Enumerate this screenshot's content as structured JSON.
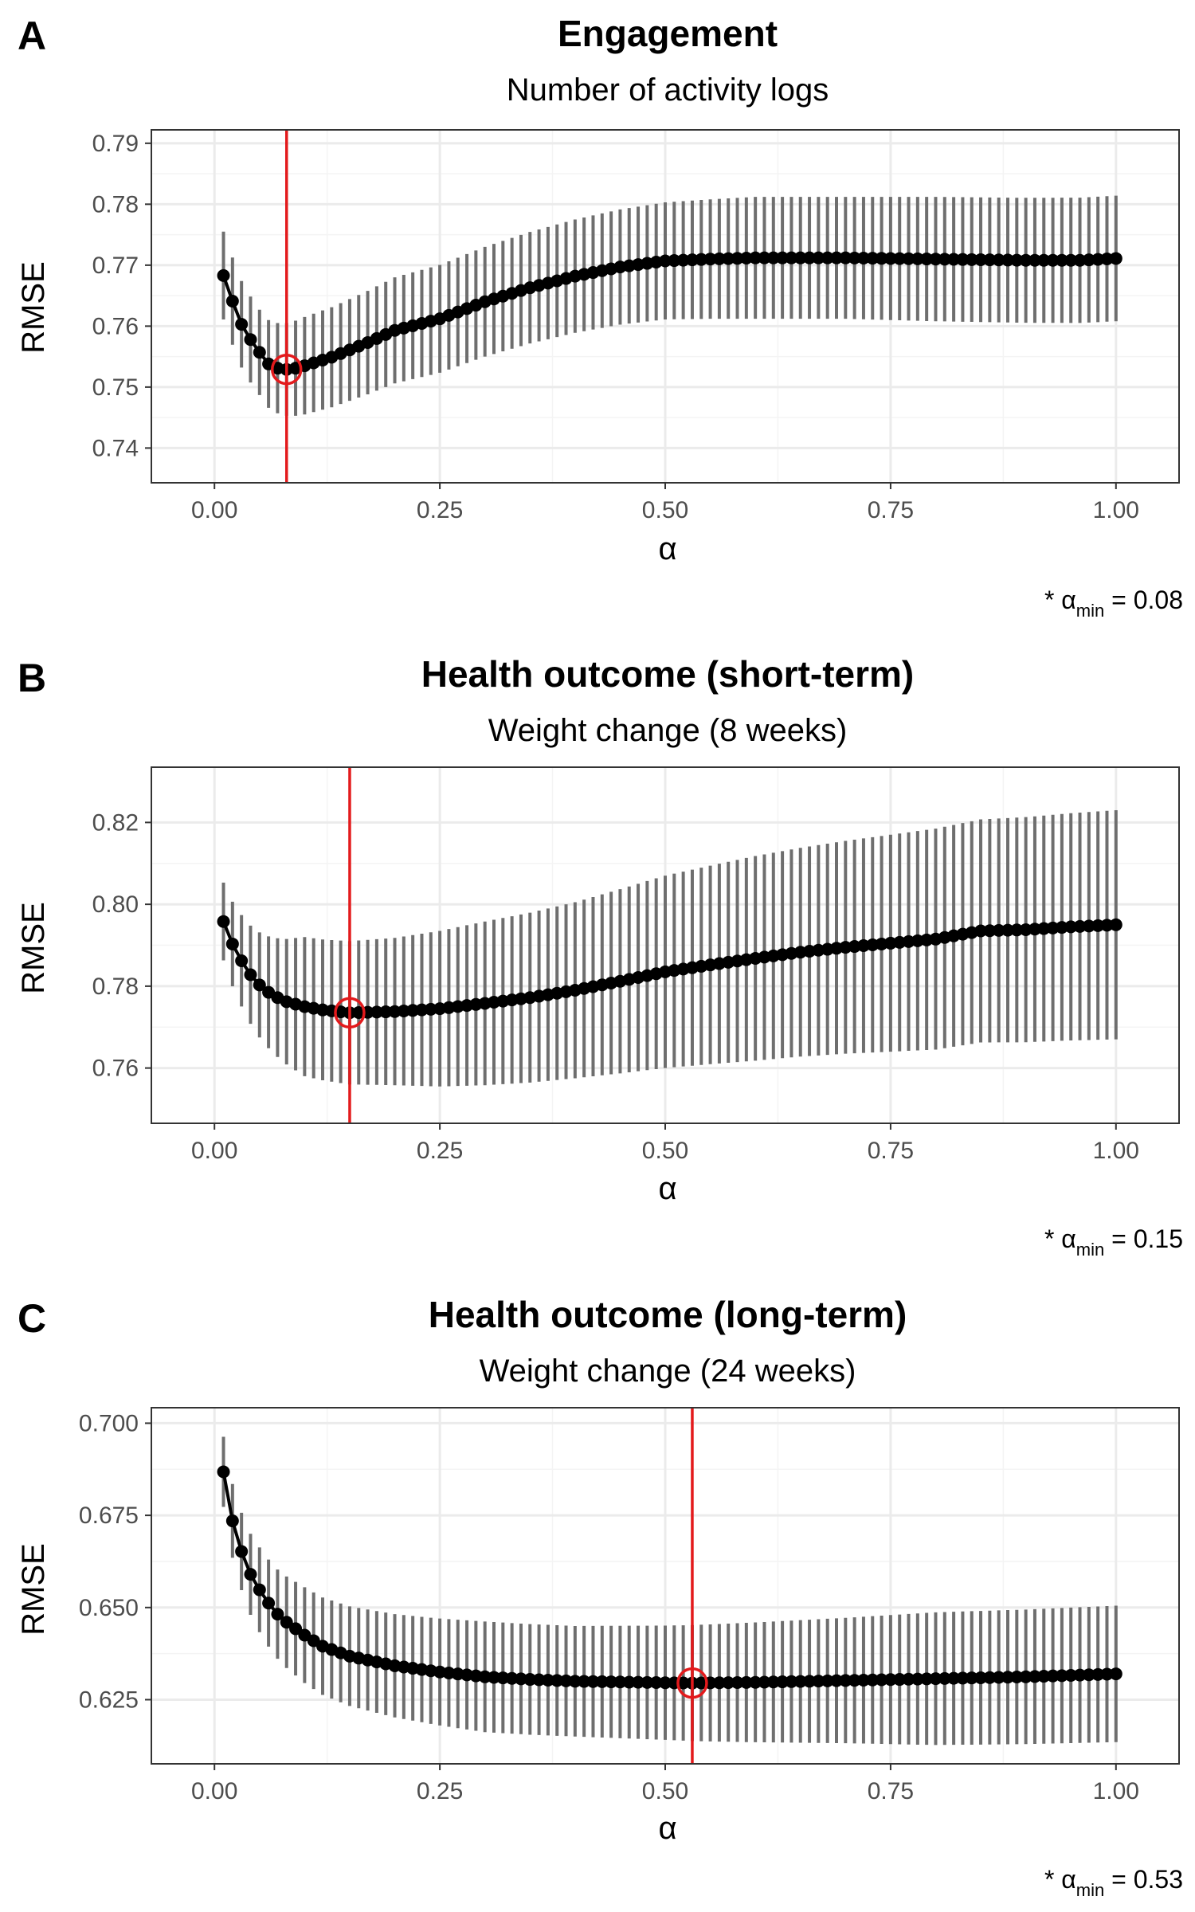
{
  "panels": [
    {
      "letter": "A",
      "title": "Engagement",
      "subtitle": "Number of activity logs",
      "xlabel": "α",
      "ylabel": "RMSE",
      "note": {
        "prefix": "* α",
        "sub": "min",
        "suffix": " = 0.08"
      }
    },
    {
      "letter": "B",
      "title": "Health outcome (short-term)",
      "subtitle": "Weight change (8 weeks)",
      "xlabel": "α",
      "ylabel": "RMSE",
      "note": {
        "prefix": "* α",
        "sub": "min",
        "suffix": " = 0.15"
      }
    },
    {
      "letter": "C",
      "title": "Health outcome (long-term)",
      "subtitle": "Weight change (24 weeks)",
      "xlabel": "α",
      "ylabel": "RMSE",
      "note": {
        "prefix": "* α",
        "sub": "min",
        "suffix": " = 0.53"
      }
    }
  ],
  "colors": {
    "point": "#000000",
    "errorbar": "#6e6e6e",
    "vline": "#e31a1c",
    "grid": "#ebebeb",
    "panel_border": "#333333"
  },
  "chart_data": [
    {
      "type": "scatter",
      "title": "Engagement",
      "subtitle": "Number of activity logs",
      "xlabel": "α",
      "ylabel": "RMSE",
      "xlim": [
        -0.07,
        1.07
      ],
      "ylim": [
        0.7343,
        0.7922
      ],
      "x_ticks": [
        0.0,
        0.25,
        0.5,
        0.75,
        1.0
      ],
      "x_tick_labels": [
        "0.00",
        "0.25",
        "0.50",
        "0.75",
        "1.00"
      ],
      "y_ticks": [
        0.74,
        0.75,
        0.76,
        0.77,
        0.78,
        0.79
      ],
      "y_tick_labels": [
        "0.74",
        "0.75",
        "0.76",
        "0.77",
        "0.78",
        "0.79"
      ],
      "grid": true,
      "alpha_min": 0.08,
      "curve": [
        [
          0.01,
          0.7683
        ],
        [
          0.02,
          0.7641
        ],
        [
          0.03,
          0.7603
        ],
        [
          0.04,
          0.7578
        ],
        [
          0.05,
          0.7557
        ],
        [
          0.06,
          0.7538
        ],
        [
          0.07,
          0.7531
        ],
        [
          0.08,
          0.7529
        ],
        [
          0.09,
          0.7531
        ],
        [
          0.1,
          0.7535
        ],
        [
          0.13,
          0.7549
        ],
        [
          0.17,
          0.7573
        ],
        [
          0.2,
          0.7593
        ],
        [
          0.25,
          0.7612
        ],
        [
          0.3,
          0.764
        ],
        [
          0.35,
          0.7663
        ],
        [
          0.4,
          0.7682
        ],
        [
          0.45,
          0.7697
        ],
        [
          0.5,
          0.7707
        ],
        [
          0.55,
          0.771
        ],
        [
          0.6,
          0.7712
        ],
        [
          0.7,
          0.7712
        ],
        [
          0.8,
          0.771
        ],
        [
          0.9,
          0.7708
        ],
        [
          0.96,
          0.7708
        ],
        [
          1.0,
          0.7711
        ]
      ],
      "halfwidth": [
        [
          0.01,
          0.0072
        ],
        [
          0.05,
          0.007
        ],
        [
          0.1,
          0.008
        ],
        [
          0.2,
          0.0087
        ],
        [
          0.3,
          0.009
        ],
        [
          0.4,
          0.0093
        ],
        [
          0.5,
          0.0096
        ],
        [
          0.6,
          0.01
        ],
        [
          0.7,
          0.01
        ],
        [
          0.8,
          0.0102
        ],
        [
          1.0,
          0.0103
        ]
      ]
    },
    {
      "type": "scatter",
      "title": "Health outcome (short-term)",
      "subtitle": "Weight change (8 weeks)",
      "xlabel": "α",
      "ylabel": "RMSE",
      "xlim": [
        -0.07,
        1.07
      ],
      "ylim": [
        0.7465,
        0.8335
      ],
      "x_ticks": [
        0.0,
        0.25,
        0.5,
        0.75,
        1.0
      ],
      "x_tick_labels": [
        "0.00",
        "0.25",
        "0.50",
        "0.75",
        "1.00"
      ],
      "y_ticks": [
        0.76,
        0.78,
        0.8,
        0.82
      ],
      "y_tick_labels": [
        "0.76",
        "0.78",
        "0.80",
        "0.82"
      ],
      "grid": true,
      "alpha_min": 0.15,
      "curve": [
        [
          0.01,
          0.7958
        ],
        [
          0.02,
          0.7903
        ],
        [
          0.03,
          0.7862
        ],
        [
          0.04,
          0.7828
        ],
        [
          0.05,
          0.7803
        ],
        [
          0.06,
          0.7785
        ],
        [
          0.07,
          0.7772
        ],
        [
          0.08,
          0.7762
        ],
        [
          0.1,
          0.775
        ],
        [
          0.12,
          0.7742
        ],
        [
          0.15,
          0.7735
        ],
        [
          0.2,
          0.7738
        ],
        [
          0.25,
          0.7745
        ],
        [
          0.3,
          0.7758
        ],
        [
          0.35,
          0.7772
        ],
        [
          0.4,
          0.779
        ],
        [
          0.45,
          0.7812
        ],
        [
          0.5,
          0.7835
        ],
        [
          0.55,
          0.7852
        ],
        [
          0.6,
          0.7868
        ],
        [
          0.65,
          0.7883
        ],
        [
          0.7,
          0.7895
        ],
        [
          0.75,
          0.7905
        ],
        [
          0.8,
          0.7915
        ],
        [
          0.85,
          0.7935
        ],
        [
          0.9,
          0.7938
        ],
        [
          0.95,
          0.7945
        ],
        [
          1.0,
          0.795
        ]
      ],
      "halfwidth": [
        [
          0.01,
          0.0095
        ],
        [
          0.1,
          0.017
        ],
        [
          0.2,
          0.018
        ],
        [
          0.3,
          0.02
        ],
        [
          0.4,
          0.0215
        ],
        [
          0.5,
          0.0235
        ],
        [
          0.6,
          0.025
        ],
        [
          0.7,
          0.026
        ],
        [
          0.8,
          0.027
        ],
        [
          0.9,
          0.0275
        ],
        [
          1.0,
          0.028
        ]
      ]
    },
    {
      "type": "scatter",
      "title": "Health outcome (long-term)",
      "subtitle": "Weight change (24 weeks)",
      "xlabel": "α",
      "ylabel": "RMSE",
      "xlim": [
        -0.07,
        1.07
      ],
      "ylim": [
        0.6076,
        0.7042
      ],
      "x_ticks": [
        0.0,
        0.25,
        0.5,
        0.75,
        1.0
      ],
      "x_tick_labels": [
        "0.00",
        "0.25",
        "0.50",
        "0.75",
        "1.00"
      ],
      "y_ticks": [
        0.625,
        0.65,
        0.675,
        0.7
      ],
      "y_tick_labels": [
        "0.625",
        "0.650",
        "0.675",
        "0.700"
      ],
      "grid": true,
      "alpha_min": 0.53,
      "curve": [
        [
          0.01,
          0.6868
        ],
        [
          0.02,
          0.6735
        ],
        [
          0.03,
          0.6652
        ],
        [
          0.04,
          0.659
        ],
        [
          0.05,
          0.6548
        ],
        [
          0.06,
          0.6512
        ],
        [
          0.07,
          0.6482
        ],
        [
          0.08,
          0.646
        ],
        [
          0.1,
          0.6425
        ],
        [
          0.12,
          0.6395
        ],
        [
          0.15,
          0.6368
        ],
        [
          0.2,
          0.6342
        ],
        [
          0.25,
          0.6325
        ],
        [
          0.3,
          0.6312
        ],
        [
          0.35,
          0.6305
        ],
        [
          0.4,
          0.63
        ],
        [
          0.45,
          0.6298
        ],
        [
          0.5,
          0.6296
        ],
        [
          0.53,
          0.6295
        ],
        [
          0.6,
          0.6297
        ],
        [
          0.7,
          0.6302
        ],
        [
          0.8,
          0.6307
        ],
        [
          0.9,
          0.6312
        ],
        [
          1.0,
          0.632
        ]
      ],
      "halfwidth": [
        [
          0.01,
          0.0095
        ],
        [
          0.05,
          0.0115
        ],
        [
          0.1,
          0.013
        ],
        [
          0.2,
          0.014
        ],
        [
          0.3,
          0.015
        ],
        [
          0.4,
          0.015
        ],
        [
          0.5,
          0.0155
        ],
        [
          0.7,
          0.017
        ],
        [
          0.8,
          0.018
        ],
        [
          1.0,
          0.0185
        ]
      ]
    }
  ]
}
